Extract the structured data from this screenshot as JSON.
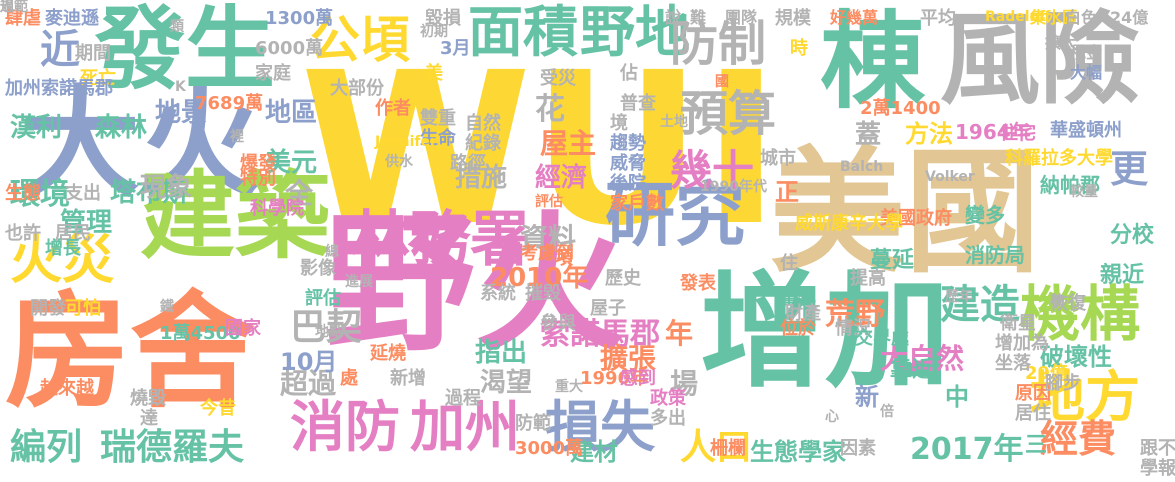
{
  "words": [
    {
      "text": "WUI",
      "c": "#fdd835"
    },
    {
      "text": "野火",
      "c": "#e57fc3"
    },
    {
      "text": "美國",
      "c": "#e2c693"
    },
    {
      "text": "增加",
      "c": "#66c2a5"
    },
    {
      "text": "房舍",
      "c": "#fc8d62"
    },
    {
      "text": "大火",
      "c": "#8da0cb"
    },
    {
      "text": "棟",
      "c": "#66c2a5"
    },
    {
      "text": "風險",
      "c": "#b3b3b3"
    },
    {
      "text": "發生",
      "c": "#66c2a5"
    },
    {
      "text": "建築",
      "c": "#a6d854"
    },
    {
      "text": "研究",
      "c": "#8da0cb"
    },
    {
      "text": "林務署",
      "c": "#e57fc3"
    },
    {
      "text": "機構",
      "c": "#a6d854"
    },
    {
      "text": "地方",
      "c": "#ffd92f"
    },
    {
      "text": "消防",
      "c": "#e57fc3"
    },
    {
      "text": "加州",
      "c": "#e57fc3"
    },
    {
      "text": "損失",
      "c": "#8da0cb"
    },
    {
      "text": "面積",
      "c": "#66c2a5"
    },
    {
      "text": "野地",
      "c": "#66c2a5"
    },
    {
      "text": "公頃",
      "c": "#ffd92f"
    },
    {
      "text": "防制",
      "c": "#b3b3b3"
    },
    {
      "text": "預算",
      "c": "#b3b3b3"
    },
    {
      "text": "幾十",
      "c": "#e57fc3"
    },
    {
      "text": "火災",
      "c": "#ffd92f"
    },
    {
      "text": "瑞德羅夫",
      "c": "#66c2a5"
    },
    {
      "text": "編列",
      "c": "#66c2a5"
    },
    {
      "text": "人口",
      "c": "#ffd92f"
    },
    {
      "text": "經費",
      "c": "#fc8d62"
    },
    {
      "text": "2017年",
      "c": "#66c2a5"
    },
    {
      "text": "建造",
      "c": "#66c2a5"
    },
    {
      "text": "巴契",
      "c": "#b3b3b3"
    },
    {
      "text": "索諾馬郡",
      "c": "#e57fc3"
    },
    {
      "text": "荒野",
      "c": "#fc8d62"
    },
    {
      "text": "大自然",
      "c": "#e57fc3"
    },
    {
      "text": "破壞性",
      "c": "#66c2a5"
    },
    {
      "text": "靠近",
      "c": "#66c2a5"
    },
    {
      "text": "分校",
      "c": "#66c2a5"
    },
    {
      "text": "親近",
      "c": "#66c2a5"
    },
    {
      "text": "更",
      "c": "#8da0cb"
    },
    {
      "text": "近",
      "c": "#8da0cb"
    },
    {
      "text": "森林",
      "c": "#66c2a5"
    },
    {
      "text": "漢利",
      "c": "#66c2a5"
    },
    {
      "text": "環境",
      "c": "#66c2a5"
    },
    {
      "text": "地景",
      "c": "#8da0cb"
    },
    {
      "text": "地區",
      "c": "#8da0cb"
    },
    {
      "text": "美元",
      "c": "#66c2a5"
    },
    {
      "text": "塔布斯",
      "c": "#66c2a5"
    },
    {
      "text": "管理",
      "c": "#66c2a5"
    },
    {
      "text": "現象",
      "c": "#b3b3b3"
    },
    {
      "text": "全",
      "c": "#b3b3b3"
    },
    {
      "text": "資料",
      "c": "#b3b3b3"
    },
    {
      "text": "2010年",
      "c": "#fc8d62"
    },
    {
      "text": "花",
      "c": "#b3b3b3"
    },
    {
      "text": "屋主",
      "c": "#fc8d62"
    },
    {
      "text": "經濟",
      "c": "#e57fc3"
    },
    {
      "text": "措施",
      "c": "#b3b3b3"
    },
    {
      "text": "渴望",
      "c": "#b3b3b3"
    },
    {
      "text": "指出",
      "c": "#66c2a5"
    },
    {
      "text": "擴張",
      "c": "#fc8d62"
    },
    {
      "text": "年",
      "c": "#fc8d62"
    },
    {
      "text": "場",
      "c": "#b3b3b3"
    },
    {
      "text": "超過",
      "c": "#b3b3b3"
    },
    {
      "text": "10月",
      "c": "#8da0cb"
    },
    {
      "text": "新",
      "c": "#8da0cb"
    },
    {
      "text": "中",
      "c": "#66c2a5"
    },
    {
      "text": "正",
      "c": "#fc8d62"
    },
    {
      "text": "蓋",
      "c": "#b3b3b3"
    },
    {
      "text": "方法",
      "c": "#ffd92f"
    },
    {
      "text": "1964年",
      "c": "#e57fc3"
    },
    {
      "text": "蔓延",
      "c": "#66c2a5"
    },
    {
      "text": "消防局",
      "c": "#66c2a5"
    },
    {
      "text": "變多",
      "c": "#66c2a5"
    },
    {
      "text": "納帕郡",
      "c": "#66c2a5"
    },
    {
      "text": "三",
      "c": "#66c2a5"
    },
    {
      "text": "建材",
      "c": "#66c2a5"
    },
    {
      "text": "生態學家",
      "c": "#66c2a5"
    },
    {
      "text": "肆虐",
      "c": "#fc8d62"
    },
    {
      "text": "麥迪遜",
      "c": "#8da0cb"
    },
    {
      "text": "期間",
      "c": "#b3b3b3"
    },
    {
      "text": "死亡",
      "c": "#ffd92f"
    },
    {
      "text": "加州索諾馬郡",
      "c": "#8da0cb"
    },
    {
      "text": "7689萬",
      "c": "#fc8d62"
    },
    {
      "text": "6000萬",
      "c": "#b3b3b3"
    },
    {
      "text": "1300萬",
      "c": "#8da0cb"
    },
    {
      "text": "家庭",
      "c": "#b3b3b3"
    },
    {
      "text": "大部份",
      "c": "#b3b3b3"
    },
    {
      "text": "毀損",
      "c": "#b3b3b3"
    },
    {
      "text": "美",
      "c": "#ffd92f"
    },
    {
      "text": "3月",
      "c": "#8da0cb"
    },
    {
      "text": "受災",
      "c": "#b3b3b3"
    },
    {
      "text": "佔",
      "c": "#b3b3b3"
    },
    {
      "text": "作者",
      "c": "#fc8d62"
    },
    {
      "text": "雙重",
      "c": "#b3b3b3"
    },
    {
      "text": "生命",
      "c": "#8da0cb"
    },
    {
      "text": "普查",
      "c": "#b3b3b3"
    },
    {
      "text": "紀錄",
      "c": "#b3b3b3"
    },
    {
      "text": "自然",
      "c": "#b3b3b3"
    },
    {
      "text": "路徑",
      "c": "#b3b3b3"
    },
    {
      "text": "趨勢",
      "c": "#8da0cb"
    },
    {
      "text": "威脅",
      "c": "#8da0cb"
    },
    {
      "text": "後院",
      "c": "#8da0cb"
    },
    {
      "text": "家戶數",
      "c": "#fc8d62"
    },
    {
      "text": "特別",
      "c": "#fc8d62"
    },
    {
      "text": "爆發",
      "c": "#fc8d62"
    },
    {
      "text": "科學院",
      "c": "#e57fc3"
    },
    {
      "text": "生態",
      "c": "#fc8d62"
    },
    {
      "text": "支出",
      "c": "#b3b3b3"
    },
    {
      "text": "也許",
      "c": "#b3b3b3"
    },
    {
      "text": "居民",
      "c": "#b3b3b3"
    },
    {
      "text": "增長",
      "c": "#66c2a5"
    },
    {
      "text": "影像",
      "c": "#b3b3b3"
    },
    {
      "text": "評估",
      "c": "#66c2a5"
    },
    {
      "text": "開發",
      "c": "#b3b3b3"
    },
    {
      "text": "可怕",
      "c": "#ffd92f"
    },
    {
      "text": "1萬4500",
      "c": "#66c2a5"
    },
    {
      "text": "國家",
      "c": "#e57fc3"
    },
    {
      "text": "延燒",
      "c": "#fc8d62"
    },
    {
      "text": "燒毀",
      "c": "#b3b3b3"
    },
    {
      "text": "今昔",
      "c": "#ffd92f"
    },
    {
      "text": "越來越",
      "c": "#fc8d62"
    },
    {
      "text": "達",
      "c": "#b3b3b3"
    },
    {
      "text": "處",
      "c": "#fc8d62"
    },
    {
      "text": "新增",
      "c": "#b3b3b3"
    },
    {
      "text": "1990年",
      "c": "#fc8d62"
    },
    {
      "text": "過程",
      "c": "#b3b3b3"
    },
    {
      "text": "感到",
      "c": "#e57fc3"
    },
    {
      "text": "政策",
      "c": "#e57fc3"
    },
    {
      "text": "多出",
      "c": "#b3b3b3"
    },
    {
      "text": "3000萬",
      "c": "#fc8d62"
    },
    {
      "text": "柵欄",
      "c": "#fc8d62"
    },
    {
      "text": "因素",
      "c": "#b3b3b3"
    },
    {
      "text": "防範",
      "c": "#b3b3b3"
    },
    {
      "text": "項",
      "c": "#fc8d62"
    },
    {
      "text": "考慮到",
      "c": "#fc8d62"
    },
    {
      "text": "歷史",
      "c": "#b3b3b3"
    },
    {
      "text": "系統",
      "c": "#b3b3b3"
    },
    {
      "text": "摧毀",
      "c": "#b3b3b3"
    },
    {
      "text": "參與",
      "c": "#b3b3b3"
    },
    {
      "text": "屋子",
      "c": "#b3b3b3"
    },
    {
      "text": "發表",
      "c": "#fc8d62"
    },
    {
      "text": "量化",
      "c": "#66c2a5"
    },
    {
      "text": "位於",
      "c": "#fc8d62"
    },
    {
      "text": "情況",
      "c": "#b3b3b3"
    },
    {
      "text": "交界處",
      "c": "#66c2a5"
    },
    {
      "text": "提高",
      "c": "#b3b3b3"
    },
    {
      "text": "財產",
      "c": "#b3b3b3"
    },
    {
      "text": "住",
      "c": "#b3b3b3"
    },
    {
      "text": "原因",
      "c": "#fc8d62"
    },
    {
      "text": "居住",
      "c": "#b3b3b3"
    },
    {
      "text": "29億",
      "c": "#ffd92f"
    },
    {
      "text": "恢復",
      "c": "#b3b3b3"
    },
    {
      "text": "衛星",
      "c": "#b3b3b3"
    },
    {
      "text": "增加為",
      "c": "#b3b3b3"
    },
    {
      "text": "坐落",
      "c": "#b3b3b3"
    },
    {
      "text": "腳步",
      "c": "#b3b3b3"
    },
    {
      "text": "跟不上",
      "c": "#b3b3b3"
    },
    {
      "text": "學報",
      "c": "#b3b3b3"
    },
    {
      "text": "蔘",
      "c": "#b3b3b3"
    },
    {
      "text": "美國政府",
      "c": "#fc8d62"
    },
    {
      "text": "威斯康辛大學",
      "c": "#ffd92f"
    },
    {
      "text": "Volker",
      "c": "#b3b3b3"
    },
    {
      "text": "Balch",
      "c": "#b3b3b3"
    },
    {
      "text": "科羅拉多大學",
      "c": "#ffd92f"
    },
    {
      "text": "住宅",
      "c": "#e57fc3"
    },
    {
      "text": "華盛頓州",
      "c": "#8da0cb"
    },
    {
      "text": "2萬1400",
      "c": "#fc8d62"
    },
    {
      "text": "城市",
      "c": "#b3b3b3"
    },
    {
      "text": "境",
      "c": "#b3b3b3"
    },
    {
      "text": "時",
      "c": "#ffd92f"
    },
    {
      "text": "平均",
      "c": "#b3b3b3"
    },
    {
      "text": "Radeloff",
      "c": "#ffd92f"
    },
    {
      "text": "集水區",
      "c": "#ffd92f"
    },
    {
      "text": "白色",
      "c": "#b3b3b3"
    },
    {
      "text": "24億",
      "c": "#b3b3b3"
    },
    {
      "text": "擴大",
      "c": "#b3b3b3"
    },
    {
      "text": "稅金",
      "c": "#b3b3b3"
    },
    {
      "text": "大幅",
      "c": "#8da0cb"
    },
    {
      "text": "說",
      "c": "#b3b3b3"
    },
    {
      "text": "難",
      "c": "#b3b3b3"
    },
    {
      "text": "團隊",
      "c": "#b3b3b3"
    },
    {
      "text": "規模",
      "c": "#b3b3b3"
    },
    {
      "text": "好幾萬",
      "c": "#fc8d62"
    },
    {
      "text": "類",
      "c": "#b3b3b3"
    },
    {
      "text": "初期",
      "c": "#b3b3b3"
    },
    {
      "text": "Jennifer",
      "c": "#ffd92f"
    },
    {
      "text": "供水",
      "c": "#b3b3b3"
    },
    {
      "text": "裡",
      "c": "#b3b3b3"
    },
    {
      "text": "總",
      "c": "#b3b3b3"
    },
    {
      "text": "評估",
      "c": "#fc8d62"
    },
    {
      "text": "1990年代",
      "c": "#b3b3b3"
    },
    {
      "text": "地點",
      "c": "#b3b3b3"
    },
    {
      "text": "進展",
      "c": "#b3b3b3"
    },
    {
      "text": "重大",
      "c": "#b3b3b3"
    },
    {
      "text": "心",
      "c": "#b3b3b3"
    },
    {
      "text": "倍",
      "c": "#b3b3b3"
    },
    {
      "text": "國",
      "c": "#fc8d62"
    },
    {
      "text": "鐵",
      "c": "#b3b3b3"
    },
    {
      "text": "K",
      "c": "#b3b3b3"
    },
    {
      "text": "土地",
      "c": "#b3b3b3"
    },
    {
      "text": "歷年",
      "c": "#b3b3b3"
    },
    {
      "text": "較量",
      "c": "#b3b3b3"
    },
    {
      "text": "規範",
      "c": "#b3b3b3"
    },
    {
      "text": "過",
      "c": "#b3b3b3"
    }
  ]
}
